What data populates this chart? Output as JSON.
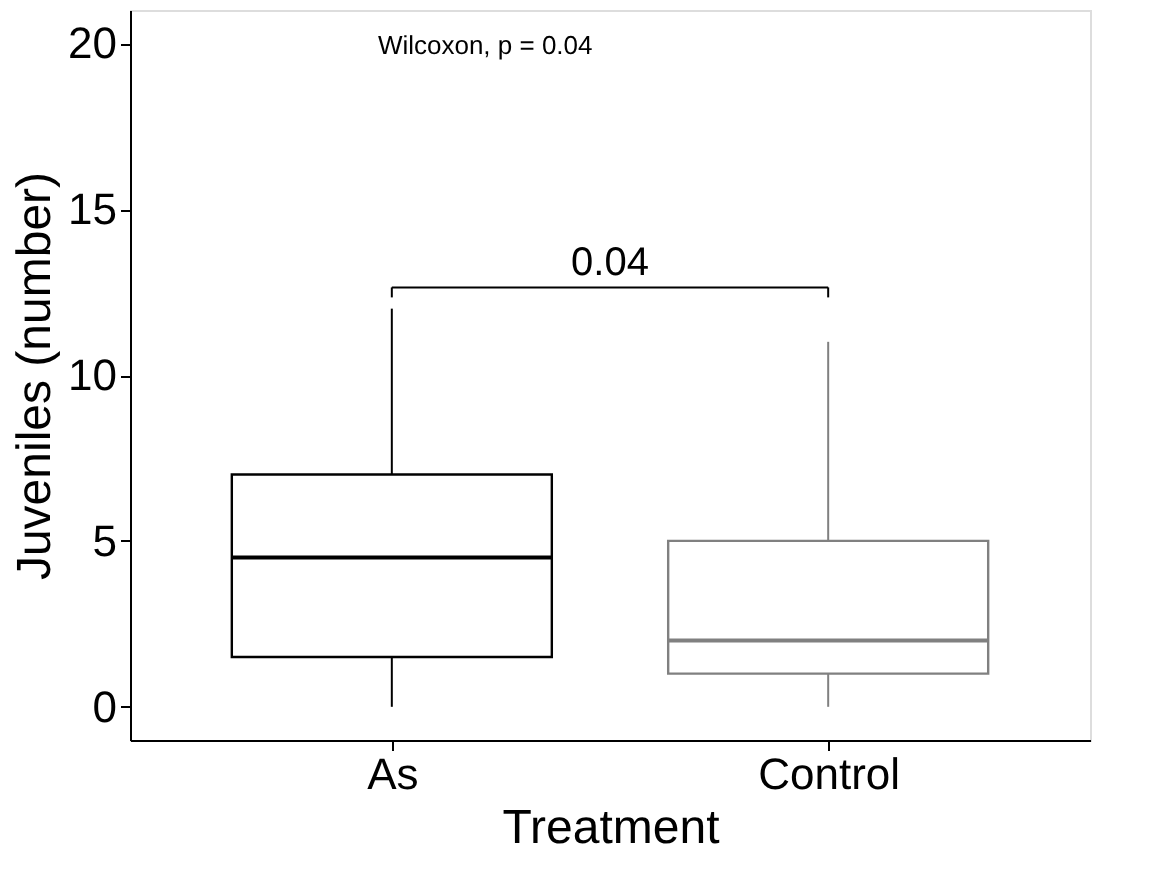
{
  "chart_data": {
    "type": "box",
    "xlabel": "Treatment",
    "ylabel": "Juveniles (number)",
    "categories": [
      "As",
      "Control"
    ],
    "boxes": [
      {
        "low": 0,
        "q1": 1.5,
        "median": 4.5,
        "q3": 7,
        "high": 12
      },
      {
        "low": 0,
        "q1": 1,
        "median": 2,
        "q3": 5,
        "high": 11
      }
    ],
    "colors": [
      "#000000",
      "#808080"
    ],
    "ylim": [
      -1,
      21
    ],
    "yticks": [
      0,
      5,
      10,
      15,
      20
    ],
    "grid": false,
    "annotations": [
      "Wilcoxon, p = 0.04",
      "0.04"
    ]
  }
}
